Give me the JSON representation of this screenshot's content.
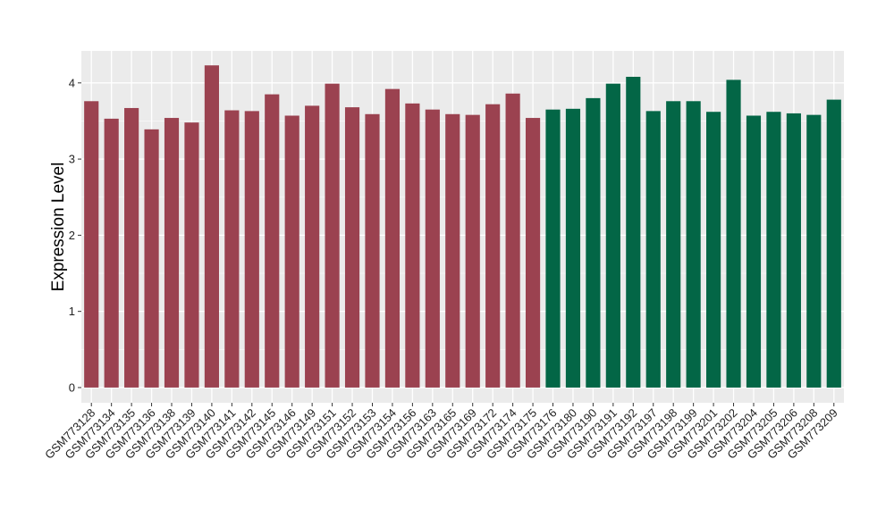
{
  "chart_data": {
    "type": "bar",
    "title": "",
    "xlabel": "",
    "ylabel": "Expression Level",
    "ylim": [
      -0.2,
      4.42
    ],
    "yticks": [
      0,
      1,
      2,
      3,
      4
    ],
    "grid": true,
    "background": "#ebebeb",
    "categories": [
      "GSM773128",
      "GSM773134",
      "GSM773135",
      "GSM773136",
      "GSM773138",
      "GSM773139",
      "GSM773140",
      "GSM773141",
      "GSM773142",
      "GSM773145",
      "GSM773146",
      "GSM773149",
      "GSM773151",
      "GSM773152",
      "GSM773153",
      "GSM773154",
      "GSM773156",
      "GSM773163",
      "GSM773165",
      "GSM773169",
      "GSM773172",
      "GSM773174",
      "GSM773175",
      "GSM773176",
      "GSM773180",
      "GSM773190",
      "GSM773191",
      "GSM773192",
      "GSM773197",
      "GSM773198",
      "GSM773199",
      "GSM773201",
      "GSM773202",
      "GSM773204",
      "GSM773205",
      "GSM773206",
      "GSM773208",
      "GSM773209"
    ],
    "values": [
      3.76,
      3.53,
      3.67,
      3.39,
      3.54,
      3.48,
      4.23,
      3.64,
      3.63,
      3.85,
      3.57,
      3.7,
      3.99,
      3.68,
      3.59,
      3.92,
      3.73,
      3.65,
      3.59,
      3.58,
      3.72,
      3.86,
      3.54,
      3.65,
      3.66,
      3.8,
      3.99,
      4.08,
      3.63,
      3.76,
      3.76,
      3.62,
      4.04,
      3.57,
      3.62,
      3.6,
      3.58,
      3.78
    ],
    "groups": [
      "a",
      "a",
      "a",
      "a",
      "a",
      "a",
      "a",
      "a",
      "a",
      "a",
      "a",
      "a",
      "a",
      "a",
      "a",
      "a",
      "a",
      "a",
      "a",
      "a",
      "a",
      "a",
      "a",
      "b",
      "b",
      "b",
      "b",
      "b",
      "b",
      "b",
      "b",
      "b",
      "b",
      "b",
      "b",
      "b",
      "b",
      "b"
    ],
    "colors": {
      "a": "#9b4250",
      "b": "#036646"
    }
  }
}
